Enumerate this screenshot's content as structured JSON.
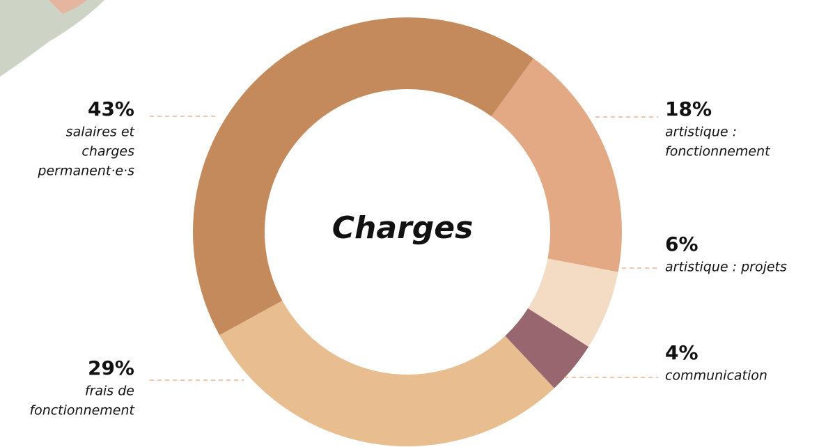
{
  "chart_data": {
    "type": "donut",
    "title": "Charges",
    "categories": [
      [
        "artistique :",
        "fonctionnement"
      ],
      [
        "artistique : projets"
      ],
      [
        "communication"
      ],
      [
        "frais de",
        "fonctionnement"
      ],
      [
        "salaires et",
        "charges",
        "permanent·e·s"
      ]
    ],
    "values": [
      18,
      6,
      4,
      29,
      43
    ],
    "value_labels": [
      "18%",
      "6%",
      "4%",
      "29%",
      "43%"
    ],
    "colors": [
      "#e3a985",
      "#f4dcc4",
      "#98666e",
      "#e8be90",
      "#c48a5c"
    ]
  }
}
